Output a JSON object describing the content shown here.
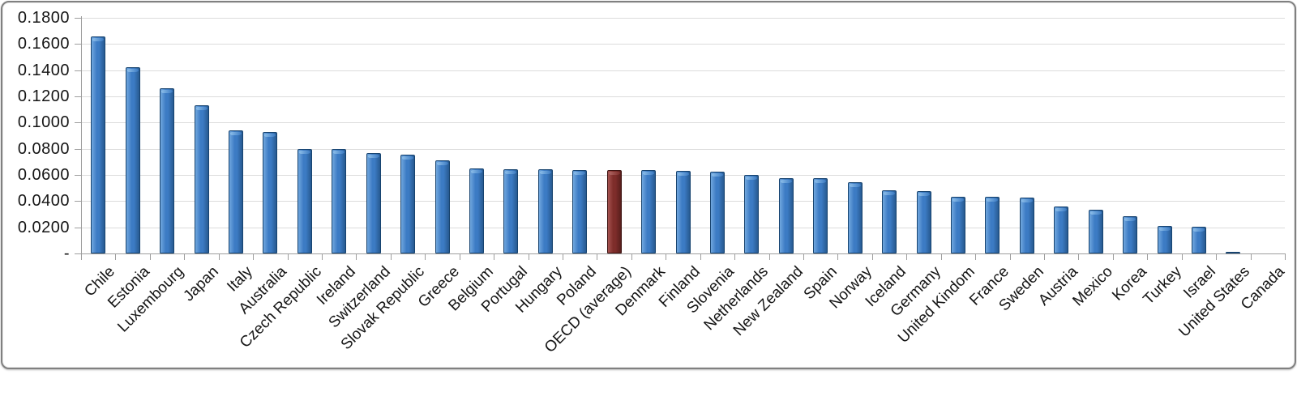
{
  "chart_data": {
    "type": "bar",
    "title": "",
    "xlabel": "",
    "ylabel": "",
    "legend": "none",
    "grid": true,
    "ylim": [
      0,
      0.18
    ],
    "y_tick_step": 0.02,
    "y_ticks": [
      {
        "label": "0.1800",
        "value": 0.18
      },
      {
        "label": "0.1600",
        "value": 0.16
      },
      {
        "label": "0.1400",
        "value": 0.14
      },
      {
        "label": "0.1200",
        "value": 0.12
      },
      {
        "label": "0.1000",
        "value": 0.1
      },
      {
        "label": "0.0800",
        "value": 0.08
      },
      {
        "label": "0.0600",
        "value": 0.06
      },
      {
        "label": "0.0400",
        "value": 0.04
      },
      {
        "label": "0.0200",
        "value": 0.02
      },
      {
        "label": "-",
        "value": 0.0
      }
    ],
    "categories": [
      "Chile",
      "Estonia",
      "Luxembourg",
      "Japan",
      "Italy",
      "Australia",
      "Czech Republic",
      "Ireland",
      "Switzerland",
      "Slovak Republic",
      "Greece",
      "Belgium",
      "Portugal",
      "Hungary",
      "Poland",
      "OECD (average)",
      "Denmark",
      "Finland",
      "Slovenia",
      "Netherlands",
      "New Zealand",
      "Spain",
      "Norway",
      "Iceland",
      "Germany",
      "United Kindom",
      "France",
      "Sweden",
      "Austria",
      "Mexico",
      "Korea",
      "Turkey",
      "Israel",
      "United States",
      "Canada"
    ],
    "values": [
      0.1655,
      0.1425,
      0.126,
      0.113,
      0.094,
      0.0927,
      0.0797,
      0.0795,
      0.077,
      0.0757,
      0.071,
      0.0648,
      0.0644,
      0.0641,
      0.064,
      0.0637,
      0.0635,
      0.0633,
      0.0625,
      0.0598,
      0.0576,
      0.0574,
      0.0545,
      0.0485,
      0.0478,
      0.0434,
      0.0433,
      0.0428,
      0.036,
      0.0335,
      0.0285,
      0.0211,
      0.0204,
      0.0014,
      0.0
    ],
    "highlight_index": 15,
    "highlight_category": "OECD (average)",
    "colors": {
      "bar_blue": {
        "outline": "#17436F",
        "light": "#71A7DE",
        "mid": "#3C7BC4",
        "dark": "#275A90",
        "cap": "#8FC0EA"
      },
      "bar_highlight": {
        "outline": "#3E1412",
        "light": "#A65350",
        "mid": "#7E2D2A",
        "dark": "#571E1C",
        "cap": "#B06865"
      },
      "gridline": "#DCDCDC",
      "axis": "#9E9E9E",
      "text": "#151515"
    }
  }
}
